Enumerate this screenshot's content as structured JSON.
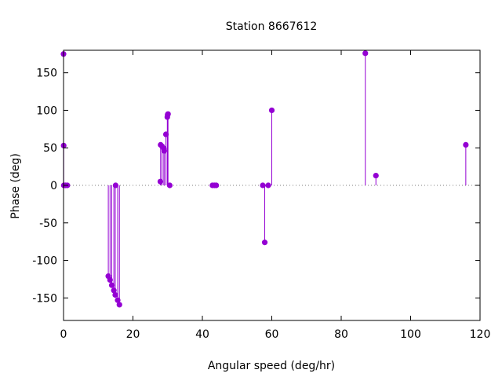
{
  "chart_data": {
    "type": "stem",
    "title": "Station 8667612",
    "xlabel": "Angular speed (deg/hr)",
    "ylabel": "Phase (deg)",
    "xlim": [
      0,
      120
    ],
    "ylim": [
      -180,
      180
    ],
    "xticks": [
      0,
      20,
      40,
      60,
      80,
      100,
      120
    ],
    "yticks": [
      -150,
      -100,
      -50,
      0,
      50,
      100,
      150
    ],
    "zero_line": "dotted",
    "color": "#9400D3",
    "points": [
      {
        "x": 0.0,
        "y": 175
      },
      {
        "x": 0.04,
        "y": 53
      },
      {
        "x": 0.08,
        "y": 0
      },
      {
        "x": 0.54,
        "y": 0
      },
      {
        "x": 1.1,
        "y": 0
      },
      {
        "x": 12.9,
        "y": -121
      },
      {
        "x": 13.4,
        "y": -126
      },
      {
        "x": 13.9,
        "y": -133
      },
      {
        "x": 14.5,
        "y": -140
      },
      {
        "x": 14.9,
        "y": -146
      },
      {
        "x": 15.0,
        "y": 0
      },
      {
        "x": 15.6,
        "y": -153
      },
      {
        "x": 16.1,
        "y": -159
      },
      {
        "x": 27.9,
        "y": 5
      },
      {
        "x": 27.97,
        "y": 54
      },
      {
        "x": 28.4,
        "y": 52
      },
      {
        "x": 28.9,
        "y": 49
      },
      {
        "x": 29.0,
        "y": 46
      },
      {
        "x": 29.5,
        "y": 68
      },
      {
        "x": 29.9,
        "y": 91
      },
      {
        "x": 30.0,
        "y": 94
      },
      {
        "x": 30.1,
        "y": 95
      },
      {
        "x": 30.6,
        "y": 0
      },
      {
        "x": 42.9,
        "y": 0
      },
      {
        "x": 43.5,
        "y": 0
      },
      {
        "x": 44.0,
        "y": 0
      },
      {
        "x": 57.4,
        "y": 0
      },
      {
        "x": 57.97,
        "y": -76
      },
      {
        "x": 58.98,
        "y": 0
      },
      {
        "x": 60.0,
        "y": 100
      },
      {
        "x": 86.95,
        "y": 176
      },
      {
        "x": 90.0,
        "y": 13
      },
      {
        "x": 115.9,
        "y": 54
      }
    ]
  }
}
